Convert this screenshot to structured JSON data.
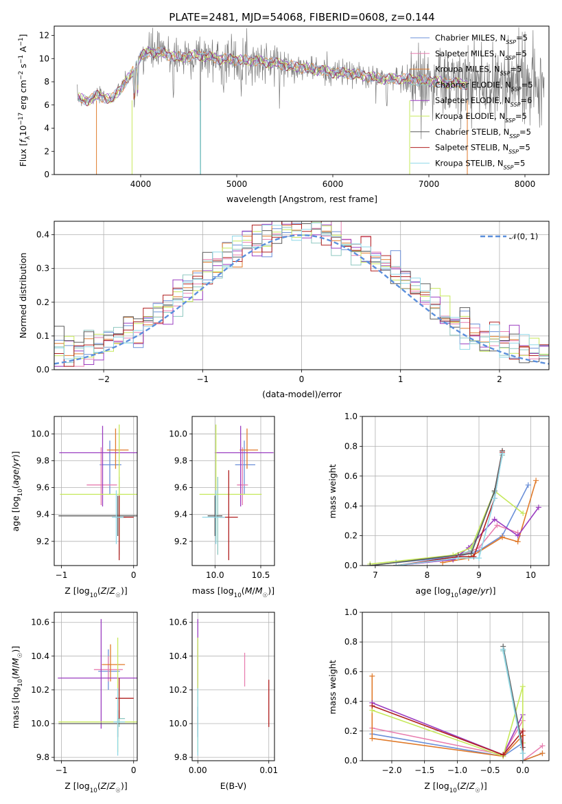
{
  "colors": [
    "#6a8fd8",
    "#e87fb0",
    "#e07a2a",
    "#8ec7c0",
    "#9a3cc0",
    "#c6e85a",
    "#5a5a5a",
    "#b01f1f",
    "#8fd8e8"
  ],
  "chart_data": [
    {
      "id": "spectrum",
      "type": "line",
      "title": "PLATE=2481, MJD=54068, FIBERID=0608, z=0.144",
      "xlabel": "wavelength [Angstrom, rest frame]",
      "ylabel": "Flux [fλ10⁻¹⁷ erg cm⁻² s⁻¹ A⁻¹]",
      "xlim": [
        3100,
        8250
      ],
      "ylim": [
        0,
        12.8
      ],
      "xticks": [
        4000,
        5000,
        6000,
        7000,
        8000
      ],
      "yticks": [
        0,
        2,
        4,
        6,
        8,
        10,
        12
      ],
      "grid": false,
      "legend": "top-right",
      "continuum": {
        "x": [
          3340,
          3450,
          3550,
          3700,
          3800,
          3900,
          3950,
          4000,
          4100,
          4200,
          4400,
          4600,
          4800,
          5000,
          5200,
          5400,
          5600,
          5800,
          6000,
          6200,
          6400,
          6600,
          6700,
          6800,
          7000,
          7200,
          7400
        ],
        "y": [
          6.6,
          6.4,
          6.8,
          6.5,
          7.5,
          8.6,
          9.4,
          10.2,
          10.6,
          10.5,
          10.1,
          10.3,
          10.0,
          9.9,
          9.8,
          9.6,
          9.3,
          9.1,
          8.8,
          8.7,
          8.4,
          8.2,
          8.3,
          8.2,
          8.1,
          7.9,
          7.8
        ]
      },
      "series": [
        {
          "name": "Chabrier MILES, N_SSP=5",
          "label_main": "Chabrier MILES, N",
          "label_sub": "SSP",
          "label_end": "=5"
        },
        {
          "name": "Salpeter MILES, N_SSP=5",
          "label_main": "Salpeter MILES, N",
          "label_sub": "SSP",
          "label_end": "=5"
        },
        {
          "name": "Kroupa MILES, N_SSP=5",
          "label_main": "Kroupa MILES, N",
          "label_sub": "SSP",
          "label_end": "=5"
        },
        {
          "name": "Chabrier ELODIE, N_SSP=5",
          "label_main": "Chabrier ELODIE, N",
          "label_sub": "SSP",
          "label_end": "=5"
        },
        {
          "name": "Salpeter ELODIE, N_SSP=6",
          "label_main": "Salpeter ELODIE, N",
          "label_sub": "SSP",
          "label_end": "=6"
        },
        {
          "name": "Kroupa ELODIE, N_SSP=5",
          "label_main": "Kroupa ELODIE, N",
          "label_sub": "SSP",
          "label_end": "=5"
        },
        {
          "name": "Chabrier STELIB, N_SSP=5",
          "label_main": "Chabrier STELIB, N",
          "label_sub": "SSP",
          "label_end": "=5"
        },
        {
          "name": "Salpeter STELIB, N_SSP=5",
          "label_main": "Salpeter STELIB, N",
          "label_sub": "SSP",
          "label_end": "=5"
        },
        {
          "name": "Kroupa STELIB, N_SSP=5",
          "label_main": "Kroupa STELIB, N",
          "label_sub": "SSP",
          "label_end": "=5"
        }
      ]
    },
    {
      "id": "residuals",
      "type": "line",
      "xlabel": "(data-model)/error",
      "ylabel": "Normed distribution",
      "xlim": [
        -2.5,
        2.5
      ],
      "ylim": [
        0,
        0.44
      ],
      "xticks": [
        -2,
        -1,
        0,
        1,
        2
      ],
      "yticks": [
        0.0,
        0.1,
        0.2,
        0.3,
        0.4
      ],
      "grid": true,
      "legend": "top-right",
      "reference": {
        "name": "𝒩(0, 1)",
        "color": "#5b8fdc",
        "mu": 0,
        "sigma": 1
      },
      "bin_width": 0.1
    },
    {
      "id": "age_vs_Z",
      "type": "scatter",
      "xlabel": "Z [log10(Z/Z☉)]",
      "ylabel": "age  [log10(age/yr)]",
      "xlim": [
        -1.1,
        0.05
      ],
      "ylim": [
        9.02,
        10.13
      ],
      "xticks": [
        -1,
        0
      ],
      "yticks": [
        9.2,
        9.4,
        9.6,
        9.8,
        10.0
      ],
      "grid": true,
      "points": [
        {
          "x": -0.33,
          "y": 9.77,
          "xerr": [
            0.14,
            0.16
          ],
          "yerr": [
            0.22,
            0.18
          ]
        },
        {
          "x": -0.45,
          "y": 9.62,
          "xerr": [
            0.2,
            0.22
          ],
          "yerr": [
            0.15,
            0.28
          ]
        },
        {
          "x": -0.25,
          "y": 9.88,
          "xerr": [
            0.12,
            0.18
          ],
          "yerr": [
            0.14,
            0.16
          ]
        },
        {
          "x": -0.2,
          "y": 9.38,
          "xerr": [
            0.02,
            0.1
          ],
          "yerr": [
            0.28,
            0.3
          ]
        },
        {
          "x": -0.43,
          "y": 9.86,
          "xerr": [
            0.6,
            0.62
          ],
          "yerr": [
            0.4,
            0.2
          ]
        },
        {
          "x": -0.2,
          "y": 9.55,
          "xerr": [
            0.82,
            0.5
          ],
          "yerr": [
            0.35,
            0.52
          ]
        },
        {
          "x": -0.22,
          "y": 9.39,
          "xerr": [
            0.82,
            0.3
          ],
          "yerr": [
            0.15,
            0.15
          ]
        },
        {
          "x": -0.2,
          "y": 9.38,
          "xerr": [
            0.05,
            0.2
          ],
          "yerr": [
            0.32,
            0.16
          ]
        },
        {
          "x": -0.24,
          "y": 9.38,
          "xerr": [
            0.06,
            0.1
          ],
          "yerr": [
            0.2,
            0.2
          ]
        }
      ]
    },
    {
      "id": "age_vs_mass",
      "type": "scatter",
      "xlabel": "mass [log10(M/M☉)]",
      "ylabel": "",
      "xlim": [
        9.75,
        10.65
      ],
      "ylim": [
        9.02,
        10.13
      ],
      "xticks": [
        10.0,
        10.5
      ],
      "yticks": [
        9.2,
        9.4,
        9.6,
        9.8,
        10.0
      ],
      "grid": true,
      "points": [
        {
          "x": 10.32,
          "y": 9.77,
          "xerr": [
            0.1,
            0.12
          ],
          "yerr": [
            0.22,
            0.18
          ]
        },
        {
          "x": 10.3,
          "y": 9.62,
          "xerr": [
            0.06,
            0.06
          ],
          "yerr": [
            0.15,
            0.28
          ]
        },
        {
          "x": 10.35,
          "y": 9.88,
          "xerr": [
            0.08,
            0.12
          ],
          "yerr": [
            0.14,
            0.16
          ]
        },
        {
          "x": 10.03,
          "y": 9.38,
          "xerr": [
            0.05,
            0.05
          ],
          "yerr": [
            0.28,
            0.3
          ]
        },
        {
          "x": 10.28,
          "y": 9.86,
          "xerr": [
            0.28,
            0.36
          ],
          "yerr": [
            0.4,
            0.2
          ]
        },
        {
          "x": 10.01,
          "y": 9.55,
          "xerr": [
            0.18,
            0.5
          ],
          "yerr": [
            0.35,
            0.52
          ]
        },
        {
          "x": 10.0,
          "y": 9.39,
          "xerr": [
            0.08,
            0.08
          ],
          "yerr": [
            0.15,
            0.15
          ]
        },
        {
          "x": 10.15,
          "y": 9.38,
          "xerr": [
            0.1,
            0.1
          ],
          "yerr": [
            0.32,
            0.35
          ]
        },
        {
          "x": 10.01,
          "y": 9.38,
          "xerr": [
            0.15,
            0.1
          ],
          "yerr": [
            0.2,
            0.2
          ]
        }
      ]
    },
    {
      "id": "weight_vs_age",
      "type": "line",
      "xlabel": "age  [log10(age/yr)]",
      "ylabel": "mass weight",
      "xlim": [
        6.75,
        10.35
      ],
      "ylim": [
        0,
        1.0
      ],
      "xticks": [
        7,
        8,
        9,
        10
      ],
      "yticks": [
        0.0,
        0.2,
        0.4,
        0.6,
        0.8,
        1.0
      ],
      "grid": true,
      "series": [
        {
          "x": [
            7.4,
            8.6,
            9.0,
            9.45,
            9.95
          ],
          "y": [
            0.02,
            0.06,
            0.1,
            0.2,
            0.54
          ]
        },
        {
          "x": [
            7.4,
            8.5,
            9.0,
            9.35,
            9.75
          ],
          "y": [
            0.0,
            0.04,
            0.12,
            0.27,
            0.22
          ]
        },
        {
          "x": [
            8.3,
            8.8,
            9.45,
            9.75,
            10.1
          ],
          "y": [
            0.02,
            0.05,
            0.19,
            0.16,
            0.57
          ]
        },
        {
          "x": [
            6.9,
            8.6,
            8.85,
            9.3,
            9.45
          ],
          "y": [
            0.0,
            0.07,
            0.1,
            0.49,
            0.74
          ]
        },
        {
          "x": [
            7.4,
            8.5,
            8.8,
            9.3,
            9.75,
            10.15
          ],
          "y": [
            0.0,
            0.04,
            0.12,
            0.31,
            0.2,
            0.39
          ]
        },
        {
          "x": [
            6.9,
            8.5,
            8.85,
            9.3,
            9.85
          ],
          "y": [
            0.01,
            0.07,
            0.12,
            0.5,
            0.35
          ]
        },
        {
          "x": [
            6.9,
            8.6,
            8.85,
            9.3,
            9.45
          ],
          "y": [
            0.0,
            0.07,
            0.08,
            0.5,
            0.77
          ]
        },
        {
          "x": [
            7.4,
            8.6,
            8.9,
            9.3,
            9.45
          ],
          "y": [
            0.0,
            0.06,
            0.06,
            0.45,
            0.76
          ]
        },
        {
          "x": [
            7.4,
            8.6,
            9.0,
            9.3,
            9.45
          ],
          "y": [
            0.0,
            0.05,
            0.05,
            0.45,
            0.75
          ]
        }
      ]
    },
    {
      "id": "mass_vs_Z",
      "type": "scatter",
      "xlabel": "Z [log10(Z/Z☉)]",
      "ylabel": "mass [log10(M/M☉)]",
      "xlim": [
        -1.1,
        0.05
      ],
      "ylim": [
        9.78,
        10.66
      ],
      "xticks": [
        -1,
        0
      ],
      "yticks": [
        9.8,
        10.0,
        10.2,
        10.4,
        10.6
      ],
      "grid": true,
      "points": [
        {
          "x": -0.35,
          "y": 10.31,
          "xerr": [
            0.14,
            0.16
          ],
          "yerr": [
            0.11,
            0.13
          ]
        },
        {
          "x": -0.35,
          "y": 10.32,
          "xerr": [
            0.2,
            0.2
          ],
          "yerr": [
            0.07,
            0.08
          ]
        },
        {
          "x": -0.32,
          "y": 10.35,
          "xerr": [
            0.12,
            0.2
          ],
          "yerr": [
            0.1,
            0.12
          ]
        },
        {
          "x": -0.2,
          "y": 10.03,
          "xerr": [
            0.02,
            0.08
          ],
          "yerr": [
            0.05,
            0.05
          ]
        },
        {
          "x": -0.45,
          "y": 10.27,
          "xerr": [
            0.6,
            0.62
          ],
          "yerr": [
            0.3,
            0.35
          ]
        },
        {
          "x": -0.22,
          "y": 10.01,
          "xerr": [
            0.82,
            0.3
          ],
          "yerr": [
            0.18,
            0.5
          ]
        },
        {
          "x": -0.22,
          "y": 10.0,
          "xerr": [
            0.82,
            0.3
          ],
          "yerr": [
            0.08,
            0.08
          ]
        },
        {
          "x": -0.2,
          "y": 10.15,
          "xerr": [
            0.05,
            0.2
          ],
          "yerr": [
            0.12,
            0.12
          ]
        },
        {
          "x": -0.22,
          "y": 10.01,
          "xerr": [
            0.06,
            0.1
          ],
          "yerr": [
            0.2,
            0.2
          ]
        }
      ]
    },
    {
      "id": "mass_vs_EBV",
      "type": "scatter",
      "xlabel": "E(B-V)",
      "ylabel": "",
      "xlim": [
        -0.0008,
        0.0108
      ],
      "ylim": [
        9.78,
        10.66
      ],
      "xticks": [
        0.0,
        0.01
      ],
      "xticklabels": [
        "0.00",
        "0.01"
      ],
      "yticks": [
        9.8,
        10.0,
        10.2,
        10.4,
        10.6
      ],
      "grid": true,
      "points": [
        {
          "x": 0.0,
          "y": 10.31,
          "xerr": [
            0,
            0
          ],
          "yerr": [
            0.11,
            0.13
          ]
        },
        {
          "x": 0.0066,
          "y": 10.32,
          "xerr": [
            0,
            0
          ],
          "yerr": [
            0.1,
            0.1
          ]
        },
        {
          "x": 0.0,
          "y": 10.35,
          "xerr": [
            0,
            0
          ],
          "yerr": [
            0.1,
            0.12
          ]
        },
        {
          "x": 0.0,
          "y": 10.03,
          "xerr": [
            0,
            0
          ],
          "yerr": [
            0.05,
            0.05
          ]
        },
        {
          "x": 0.0,
          "y": 10.27,
          "xerr": [
            0,
            0
          ],
          "yerr": [
            0.3,
            0.35
          ]
        },
        {
          "x": 0.0,
          "y": 10.01,
          "xerr": [
            0,
            0
          ],
          "yerr": [
            0.18,
            0.5
          ]
        },
        {
          "x": 0.0,
          "y": 10.0,
          "xerr": [
            0,
            0
          ],
          "yerr": [
            0.08,
            0.1
          ]
        },
        {
          "x": 0.01,
          "y": 10.12,
          "xerr": [
            0,
            0
          ],
          "yerr": [
            0.14,
            0.14
          ]
        },
        {
          "x": 0.0,
          "y": 10.01,
          "xerr": [
            0,
            0
          ],
          "yerr": [
            0.2,
            0.2
          ]
        }
      ]
    },
    {
      "id": "weight_vs_Z",
      "type": "line",
      "xlabel": "Z [log10(Z/Z☉)]",
      "ylabel": "mass weight",
      "xlim": [
        -2.45,
        0.4
      ],
      "ylim": [
        0,
        1.0
      ],
      "xticks": [
        -2.0,
        -1.5,
        -1.0,
        -0.5,
        0.0
      ],
      "yticks": [
        0.0,
        0.2,
        0.4,
        0.6,
        0.8,
        1.0
      ],
      "grid": true,
      "series": [
        {
          "x": [
            -2.3,
            -0.3,
            0.0,
            0.0,
            0.3
          ],
          "y": [
            0.18,
            0.03,
            0.12,
            0.0,
            0.05
          ]
        },
        {
          "x": [
            -2.3,
            -0.3,
            0.0,
            0.0,
            0.3
          ],
          "y": [
            0.22,
            0.04,
            0.27,
            0.0,
            0.1
          ]
        },
        {
          "x": [
            -2.3,
            -2.3,
            -0.3,
            0.0,
            0.0,
            0.3
          ],
          "y": [
            0.57,
            0.15,
            0.03,
            0.17,
            0.0,
            0.05
          ]
        },
        {
          "x": [
            -0.3,
            -0.3,
            0.0,
            0.0
          ],
          "y": [
            0.75,
            0.74,
            0.05,
            0.0
          ]
        },
        {
          "x": [
            -2.3,
            -0.3,
            0.0,
            0.0
          ],
          "y": [
            0.39,
            0.04,
            0.31,
            0.0
          ]
        },
        {
          "x": [
            -2.3,
            -0.3,
            0.0,
            0.0,
            0.0
          ],
          "y": [
            0.34,
            0.03,
            0.5,
            0.12,
            0.0
          ]
        },
        {
          "x": [
            -0.3,
            0.0,
            0.0
          ],
          "y": [
            0.77,
            0.09,
            0.0
          ]
        },
        {
          "x": [
            -2.3,
            -0.3,
            0.0,
            0.0
          ],
          "y": [
            0.37,
            0.04,
            0.2,
            0.0
          ]
        },
        {
          "x": [
            -0.3,
            0.0,
            0.0
          ],
          "y": [
            0.75,
            0.05,
            0.0
          ]
        }
      ]
    }
  ]
}
